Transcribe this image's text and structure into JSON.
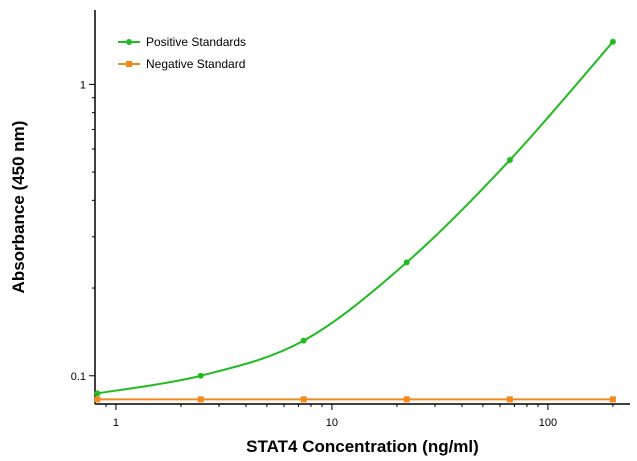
{
  "chart_data": {
    "type": "line",
    "title": "",
    "xlabel": "STAT4 Concentration (ng/ml)",
    "ylabel": "Absorbance (450 nm)",
    "x_scale": "log",
    "y_scale": "log",
    "xlim": [
      0.8,
      240
    ],
    "ylim": [
      0.08,
      1.8
    ],
    "x_ticks": [
      1,
      10,
      100
    ],
    "x_tick_labels": [
      "1",
      "10",
      "100"
    ],
    "y_ticks": [
      0.1,
      1
    ],
    "y_tick_labels": [
      "0.1",
      "1"
    ],
    "grid": false,
    "legend_position": "top-left",
    "series": [
      {
        "name": "Positive Standards",
        "color": "#22bb22",
        "marker": "circle",
        "fit": "smooth-curve",
        "x": [
          0.82,
          2.47,
          7.4,
          22.2,
          66.7,
          200
        ],
        "y": [
          0.087,
          0.1,
          0.132,
          0.245,
          0.55,
          1.4
        ]
      },
      {
        "name": "Negative Standard",
        "color": "#f08a1c",
        "marker": "square",
        "fit": "line",
        "x": [
          0.82,
          2.47,
          7.4,
          22.2,
          66.7,
          200
        ],
        "y": [
          0.083,
          0.083,
          0.083,
          0.083,
          0.083,
          0.083
        ]
      }
    ]
  }
}
